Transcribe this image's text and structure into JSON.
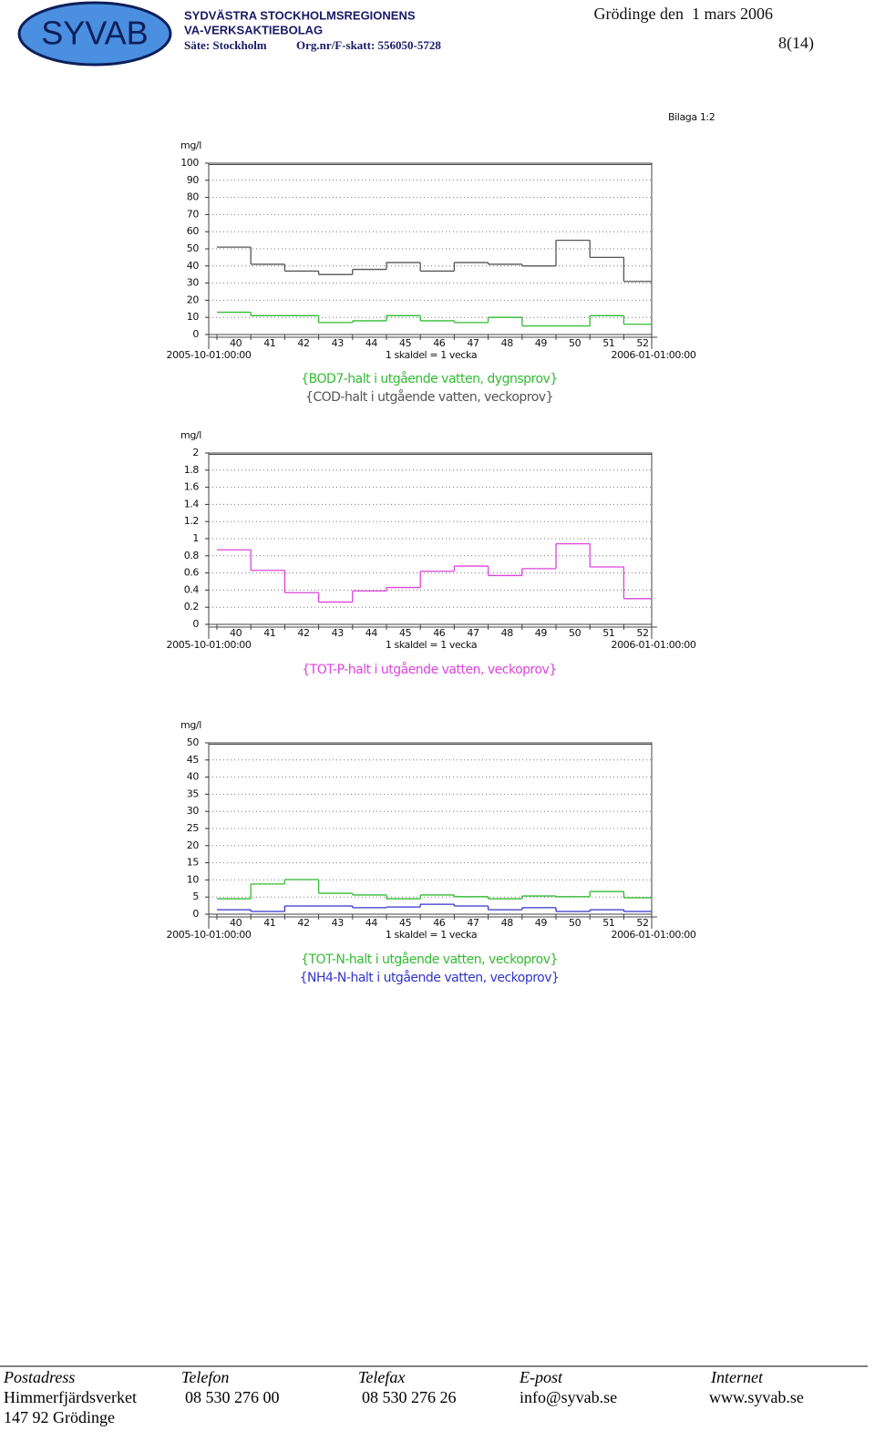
{
  "header": {
    "logo": "SYVAB",
    "company_line1": "SYDVÄSTRA STOCKHOLMSREGIONENS",
    "company_line2": "VA-VERKSAKTIEBOLAG",
    "seat": "Säte: Stockholm",
    "org_nr": "Org.nr/F-skatt: 556050-5728",
    "place_date": "Grödinge den  1 mars 2006",
    "page": "8(14)"
  },
  "attachment": "Bilaga 1:2",
  "chart_data": [
    {
      "type": "step",
      "y_label": "mg/l",
      "y_label_color": "#2aa02a",
      "categories": [
        "40",
        "41",
        "42",
        "43",
        "44",
        "45",
        "46",
        "47",
        "48",
        "49",
        "50",
        "51",
        "52"
      ],
      "x_start_label": "2005-10-01:00:00",
      "x_end_label": "2006-01-01:00:00",
      "x_label": "1 skaldel = 1 vecka",
      "ylim": [
        0,
        100
      ],
      "yticks": [
        0,
        10,
        20,
        30,
        40,
        50,
        60,
        70,
        80,
        90,
        100
      ],
      "grid": true,
      "series": [
        {
          "name": "{BOD7-halt i utgående vatten, dygnsprov}",
          "color": "#33bb33",
          "values": [
            13,
            11,
            11,
            7,
            8,
            11,
            8,
            7,
            10,
            5,
            5,
            11,
            6
          ]
        },
        {
          "name": "{COD-halt i utgående vatten, veckoprov}",
          "color": "#555555",
          "values": [
            51,
            41,
            37,
            35,
            38,
            42,
            37,
            42,
            41,
            40,
            55,
            45,
            31
          ]
        }
      ]
    },
    {
      "type": "step",
      "y_label": "mg/l",
      "y_label_color": "#cc33cc",
      "categories": [
        "40",
        "41",
        "42",
        "43",
        "44",
        "45",
        "46",
        "47",
        "48",
        "49",
        "50",
        "51",
        "52"
      ],
      "x_start_label": "2005-10-01:00:00",
      "x_end_label": "2006-01-01:00:00",
      "x_label": "1 skaldel = 1 vecka",
      "ylim": [
        0,
        2
      ],
      "yticks": [
        0,
        0.2,
        0.4,
        0.6,
        0.8,
        1,
        1.2,
        1.4,
        1.6,
        1.8,
        2
      ],
      "grid": true,
      "series": [
        {
          "name": "{TOT-P-halt i utgående vatten, veckoprov}",
          "color": "#dd44dd",
          "values": [
            0.87,
            0.63,
            0.37,
            0.26,
            0.39,
            0.43,
            0.62,
            0.68,
            0.57,
            0.65,
            0.94,
            0.67,
            0.3
          ]
        }
      ]
    },
    {
      "type": "step",
      "y_label": "mg/l",
      "y_label_color": "#2aa02a",
      "categories": [
        "40",
        "41",
        "42",
        "43",
        "44",
        "45",
        "46",
        "47",
        "48",
        "49",
        "50",
        "51",
        "52"
      ],
      "x_start_label": "2005-10-01:00:00",
      "x_end_label": "2006-01-01:00:00",
      "x_label": "1 skaldel = 1 vecka",
      "ylim": [
        0,
        50
      ],
      "yticks": [
        0,
        5,
        10,
        15,
        20,
        25,
        30,
        35,
        40,
        45,
        50
      ],
      "grid": true,
      "series": [
        {
          "name": "{TOT-N-halt i utgående vatten, veckoprov}",
          "color": "#33bb33",
          "values": [
            4.5,
            8.8,
            10.1,
            6.1,
            5.6,
            4.5,
            5.6,
            5.1,
            4.5,
            5.3,
            5.1,
            6.6,
            4.8
          ]
        },
        {
          "name": "{NH4-N-halt i utgående vatten, veckoprov}",
          "color": "#3333cc",
          "values": [
            1.3,
            0.8,
            2.4,
            2.4,
            1.9,
            2.1,
            2.9,
            2.4,
            1.3,
            1.9,
            0.8,
            1.3,
            0.8
          ]
        }
      ]
    }
  ],
  "footer": {
    "labels": [
      "Postadress",
      "Telefon",
      "Telefax",
      "E-post",
      "Internet"
    ],
    "values": [
      "Himmerfjärdsverket",
      "08 530 276 00",
      "08 530 276 26",
      "info@syvab.se",
      "www.syvab.se"
    ],
    "address2": "147 92 Grödinge"
  }
}
